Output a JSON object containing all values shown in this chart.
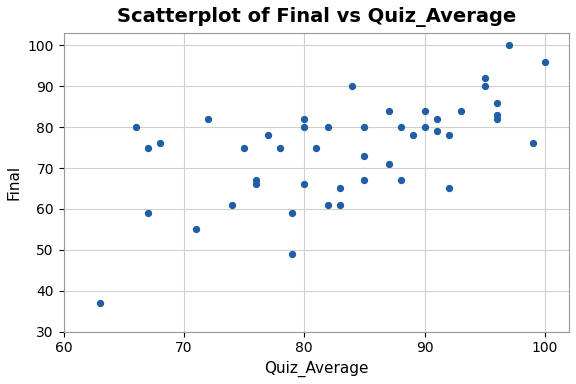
{
  "title": "Scatterplot of Final vs Quiz_Average",
  "xlabel": "Quiz_Average",
  "ylabel": "Final",
  "xlim": [
    60,
    102
  ],
  "ylim": [
    30,
    103
  ],
  "xticks": [
    60,
    70,
    80,
    90,
    100
  ],
  "yticks": [
    30,
    40,
    50,
    60,
    70,
    80,
    90,
    100
  ],
  "dot_color": "#1f5fa6",
  "background_color": "#ffffff",
  "grid_color": "#d0d0d0",
  "x": [
    63,
    66,
    67,
    67,
    68,
    71,
    72,
    74,
    75,
    76,
    76,
    77,
    78,
    79,
    79,
    80,
    80,
    80,
    81,
    82,
    82,
    83,
    83,
    84,
    85,
    85,
    85,
    87,
    87,
    88,
    88,
    89,
    90,
    90,
    91,
    91,
    92,
    92,
    93,
    95,
    95,
    96,
    96,
    96,
    97,
    99,
    100
  ],
  "y": [
    37,
    80,
    59,
    75,
    76,
    55,
    82,
    61,
    75,
    67,
    66,
    78,
    75,
    49,
    59,
    82,
    80,
    66,
    75,
    80,
    61,
    65,
    61,
    90,
    80,
    73,
    67,
    84,
    71,
    80,
    67,
    78,
    84,
    80,
    79,
    82,
    78,
    65,
    84,
    92,
    90,
    86,
    83,
    82,
    100,
    76,
    96
  ],
  "marker_size": 18,
  "title_fontsize": 14,
  "title_fontweight": "bold",
  "label_fontsize": 11,
  "tick_fontsize": 10
}
